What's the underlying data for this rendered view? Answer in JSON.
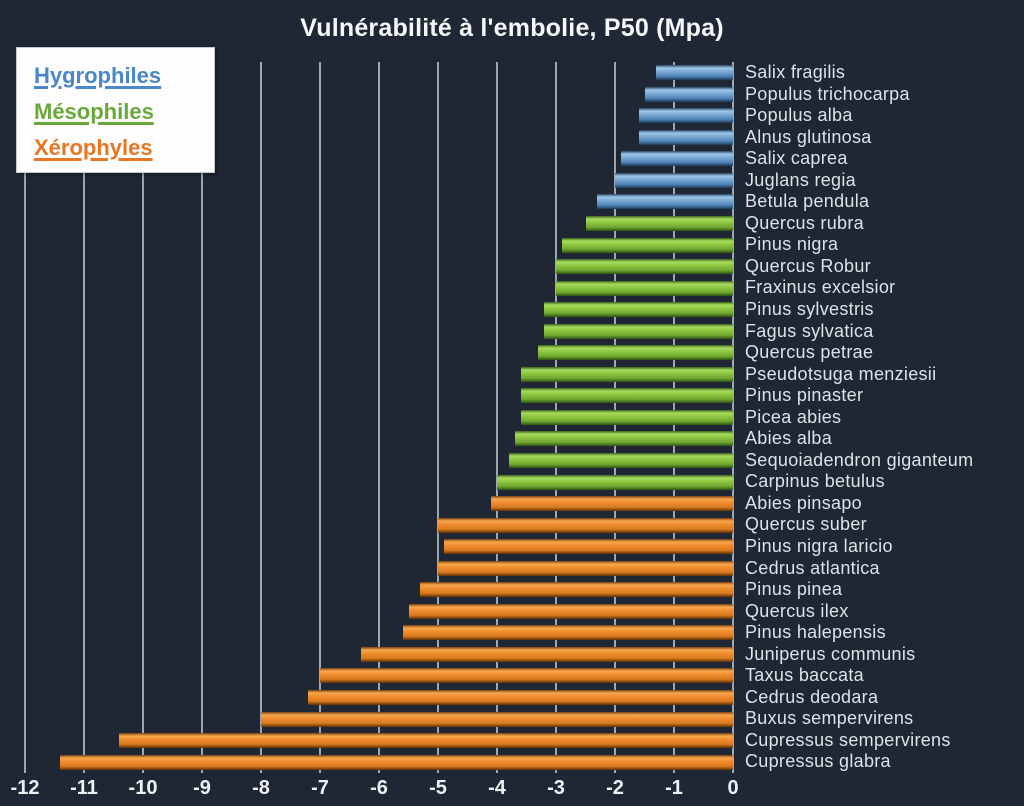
{
  "title": "Vulnérabilité à l'embolie, P50 (Mpa)",
  "legend": {
    "items": [
      {
        "label": "Hygrophiles",
        "color": "#4a86c8",
        "group": "hygrophile"
      },
      {
        "label": "Mésophiles",
        "color": "#69a83a",
        "group": "mesophile"
      },
      {
        "label": "Xérophyles",
        "color": "#e87622",
        "group": "xerophile"
      }
    ]
  },
  "colors": {
    "background": "#1e2733",
    "gridline": "#c2ccd6",
    "label_text": "#dde2e7",
    "axis_text": "#eef1f4",
    "title_text": "#f5f7f9",
    "hygrophile_bar": "#7aa8d2",
    "mesophile_bar": "#8cc63f",
    "xerophile_bar": "#ef8c2d",
    "legend_box": "#fdfdfd"
  },
  "chart_data": {
    "type": "bar",
    "orientation": "horizontal",
    "title": "Vulnérabilité à l'embolie, P50 (Mpa)",
    "xlabel": "",
    "ylabel": "",
    "xlim": [
      -12,
      0
    ],
    "x_ticks": [
      "-12",
      "-11",
      "-10",
      "-9",
      "-8",
      "-7",
      "-6",
      "-5",
      "-4",
      "-3",
      "-2",
      "-1",
      "0"
    ],
    "grid": true,
    "legend_position": "top-left",
    "value_axis_side": "bottom",
    "category_labels_side": "right",
    "items": [
      {
        "species": "Salix fragilis",
        "group": "Hygrophiles",
        "value": -1.3
      },
      {
        "species": "Populus trichocarpa",
        "group": "Hygrophiles",
        "value": -1.5
      },
      {
        "species": "Populus alba",
        "group": "Hygrophiles",
        "value": -1.6
      },
      {
        "species": "Alnus glutinosa",
        "group": "Hygrophiles",
        "value": -1.6
      },
      {
        "species": "Salix caprea",
        "group": "Hygrophiles",
        "value": -1.9
      },
      {
        "species": "Juglans regia",
        "group": "Hygrophiles",
        "value": -2.0
      },
      {
        "species": "Betula pendula",
        "group": "Hygrophiles",
        "value": -2.3
      },
      {
        "species": "Quercus rubra",
        "group": "Mésophiles",
        "value": -2.5
      },
      {
        "species": "Pinus nigra",
        "group": "Mésophiles",
        "value": -2.9
      },
      {
        "species": "Quercus Robur",
        "group": "Mésophiles",
        "value": -3.0
      },
      {
        "species": "Fraxinus excelsior",
        "group": "Mésophiles",
        "value": -3.0
      },
      {
        "species": "Pinus sylvestris",
        "group": "Mésophiles",
        "value": -3.2
      },
      {
        "species": "Fagus sylvatica",
        "group": "Mésophiles",
        "value": -3.2
      },
      {
        "species": "Quercus petrae",
        "group": "Mésophiles",
        "value": -3.3
      },
      {
        "species": "Pseudotsuga menziesii",
        "group": "Mésophiles",
        "value": -3.6
      },
      {
        "species": "Pinus pinaster",
        "group": "Mésophiles",
        "value": -3.6
      },
      {
        "species": "Picea abies",
        "group": "Mésophiles",
        "value": -3.6
      },
      {
        "species": "Abies alba",
        "group": "Mésophiles",
        "value": -3.7
      },
      {
        "species": "Sequoiadendron giganteum",
        "group": "Mésophiles",
        "value": -3.8
      },
      {
        "species": "Carpinus betulus",
        "group": "Mésophiles",
        "value": -4.0
      },
      {
        "species": "Abies pinsapo",
        "group": "Xérophyles",
        "value": -4.1
      },
      {
        "species": "Quercus suber",
        "group": "Xérophyles",
        "value": -5.0
      },
      {
        "species": "Pinus nigra laricio",
        "group": "Xérophyles",
        "value": -4.9
      },
      {
        "species": "Cedrus atlantica",
        "group": "Xérophyles",
        "value": -5.0
      },
      {
        "species": "Pinus pinea",
        "group": "Xérophyles",
        "value": -5.3
      },
      {
        "species": "Quercus ilex",
        "group": "Xérophyles",
        "value": -5.5
      },
      {
        "species": "Pinus halepensis",
        "group": "Xérophyles",
        "value": -5.6
      },
      {
        "species": "Juniperus communis",
        "group": "Xérophyles",
        "value": -6.3
      },
      {
        "species": "Taxus baccata",
        "group": "Xérophyles",
        "value": -7.0
      },
      {
        "species": "Cedrus deodara",
        "group": "Xérophyles",
        "value": -7.2
      },
      {
        "species": "Buxus sempervirens",
        "group": "Xérophyles",
        "value": -8.0
      },
      {
        "species": "Cupressus sempervirens",
        "group": "Xérophyles",
        "value": -10.4
      },
      {
        "species": "Cupressus glabra",
        "group": "Xérophyles",
        "value": -11.4
      }
    ]
  }
}
